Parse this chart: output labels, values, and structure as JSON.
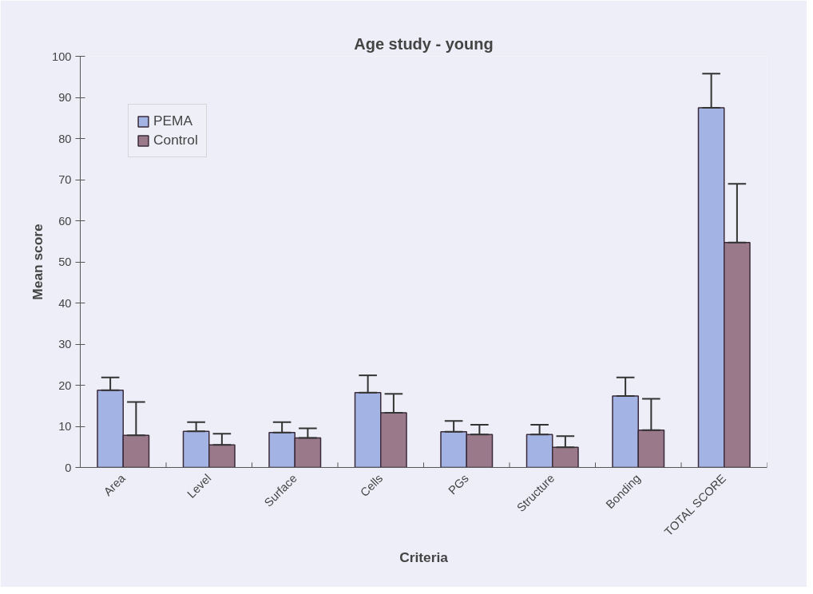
{
  "chart_data": {
    "type": "bar",
    "title": "Age study - young",
    "xlabel": "Criteria",
    "ylabel": "Mean score",
    "categories": [
      "Area",
      "Level",
      "Surface",
      "Cells",
      "PGs",
      "Structure",
      "Bonding",
      "TOTAL SCORE"
    ],
    "series": [
      {
        "name": "PEMA",
        "color": "#a3b3e3",
        "values": [
          18.8,
          8.8,
          8.5,
          18.2,
          8.7,
          8.0,
          17.4,
          87.5
        ],
        "errors": [
          [
            18.8,
            21.9
          ],
          [
            8.8,
            11.0
          ],
          [
            8.5,
            11.0
          ],
          [
            18.2,
            22.4
          ],
          [
            8.7,
            11.3
          ],
          [
            8.0,
            10.4
          ],
          [
            17.4,
            21.9
          ],
          [
            87.5,
            95.8
          ]
        ]
      },
      {
        "name": "Control",
        "color": "#9a7a8a",
        "values": [
          7.8,
          5.5,
          7.2,
          13.3,
          8.0,
          4.9,
          9.1,
          54.7
        ],
        "errors": [
          [
            7.8,
            15.9
          ],
          [
            5.5,
            8.2
          ],
          [
            7.2,
            9.5
          ],
          [
            13.3,
            17.9
          ],
          [
            8.0,
            10.4
          ],
          [
            4.9,
            7.6
          ],
          [
            9.1,
            16.7
          ],
          [
            54.7,
            69.0
          ]
        ]
      }
    ],
    "ylim": [
      0,
      100
    ],
    "yticks": [
      0,
      10,
      20,
      30,
      40,
      50,
      60,
      70,
      80,
      90,
      100
    ],
    "grid": false,
    "legend": "top left"
  }
}
